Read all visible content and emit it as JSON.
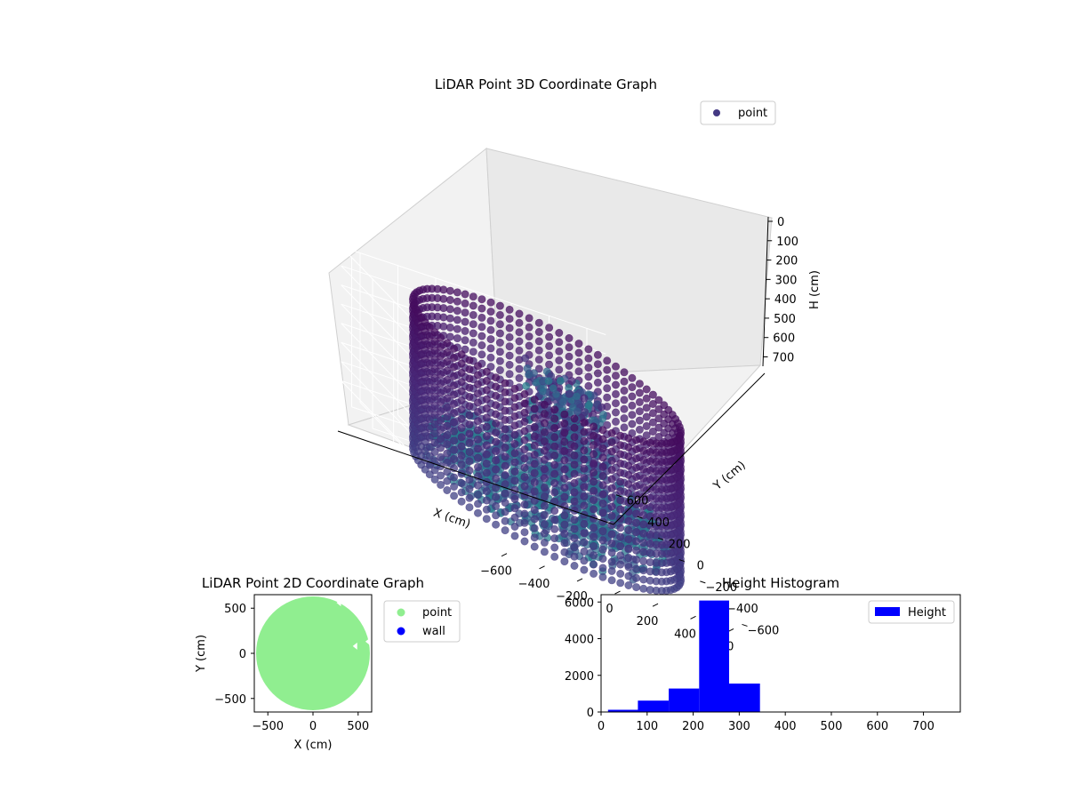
{
  "chart_data": [
    {
      "type": "scatter",
      "title": "LiDAR Point 3D Coordinate Graph",
      "xlabel": "X (cm)",
      "ylabel": "Y (cm)",
      "zlabel": "H (cm)",
      "xlim": [
        -700,
        700
      ],
      "ylim": [
        -700,
        700
      ],
      "zlim": [
        0,
        780
      ],
      "z_inverted": true,
      "x_ticks": [
        "−600",
        "−400",
        "−200",
        "0",
        "200",
        "400",
        "600"
      ],
      "y_ticks": [
        "−600",
        "−400",
        "−200",
        "0",
        "200",
        "400",
        "600"
      ],
      "z_ticks": [
        "0",
        "100",
        "200",
        "300",
        "400",
        "500",
        "600",
        "700"
      ],
      "legend": {
        "position": "top-right",
        "entries": [
          {
            "label": "point",
            "color": "#443983"
          }
        ]
      },
      "colormap": "viridis",
      "shape": "ring of points at radius ~620 cm spanning heights ~0–780 cm, interior floor points, object cluster near (250, 250)",
      "series": [
        {
          "name": "point",
          "ring_radius": 620,
          "height_range": [
            0,
            780
          ]
        }
      ],
      "grid": true
    },
    {
      "type": "scatter",
      "title": "LiDAR Point 2D Coordinate Graph",
      "xlabel": "X (cm)",
      "ylabel": "Y (cm)",
      "xlim": [
        -650,
        650
      ],
      "ylim": [
        -650,
        650
      ],
      "x_ticks": [
        "−500",
        "0",
        "500"
      ],
      "y_ticks": [
        "−500",
        "0",
        "500"
      ],
      "legend": {
        "position": "outside-right",
        "entries": [
          {
            "label": "point",
            "color": "#90ee90"
          },
          {
            "label": "wall",
            "color": "#0000ff"
          }
        ]
      },
      "series": [
        {
          "name": "point",
          "color": "#90ee90",
          "disc_radius": 630,
          "gaps": [
            {
              "x": 290,
              "y": 560
            },
            {
              "x": 470,
              "y": 80
            },
            {
              "x": 610,
              "y": 130
            }
          ]
        },
        {
          "name": "wall",
          "color": "#0000ff",
          "values": []
        }
      ],
      "grid": false
    },
    {
      "type": "bar",
      "title": "Height Histogram",
      "legend": {
        "position": "top-right",
        "entries": [
          {
            "label": "Height",
            "color": "#0000ff"
          }
        ]
      },
      "bin_edges": [
        15,
        80,
        147,
        213,
        278,
        345,
        410,
        477,
        543,
        608,
        675,
        740
      ],
      "counts": [
        120,
        620,
        1280,
        6080,
        1550,
        10,
        5,
        5,
        5,
        5,
        5
      ],
      "xlim": [
        0,
        780
      ],
      "ylim": [
        0,
        6400
      ],
      "x_ticks": [
        "0",
        "100",
        "200",
        "300",
        "400",
        "500",
        "600",
        "700"
      ],
      "y_ticks": [
        "0",
        "2000",
        "4000",
        "6000"
      ],
      "color": "#0000ff",
      "grid": false
    }
  ]
}
